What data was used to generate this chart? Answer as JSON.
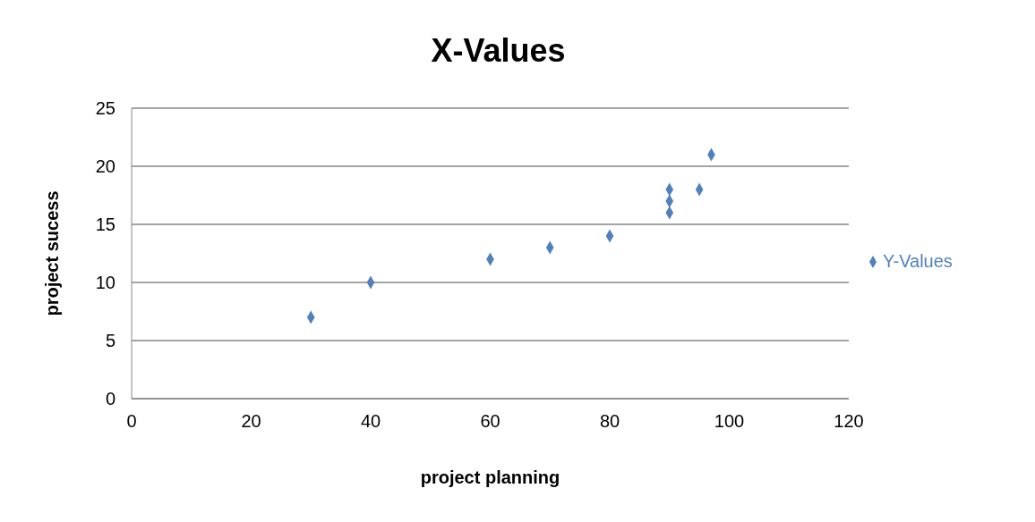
{
  "chart_data": {
    "type": "scatter",
    "title": "X-Values",
    "xlabel": "project planning",
    "ylabel": "project sucess",
    "x": [
      30,
      40,
      60,
      70,
      80,
      90,
      90,
      90,
      95,
      97
    ],
    "series": [
      {
        "name": "Y-Values",
        "color": "#4f81bd",
        "values": [
          7,
          10,
          12,
          13,
          14,
          16,
          17,
          18,
          18,
          21
        ]
      }
    ],
    "xlim": [
      0,
      120
    ],
    "xticks": [
      0,
      20,
      40,
      60,
      80,
      100,
      120
    ],
    "ylim": [
      0,
      25
    ],
    "yticks": [
      0,
      5,
      10,
      15,
      20,
      25
    ],
    "grid": "y",
    "legend": "right",
    "marker": "diamond"
  }
}
